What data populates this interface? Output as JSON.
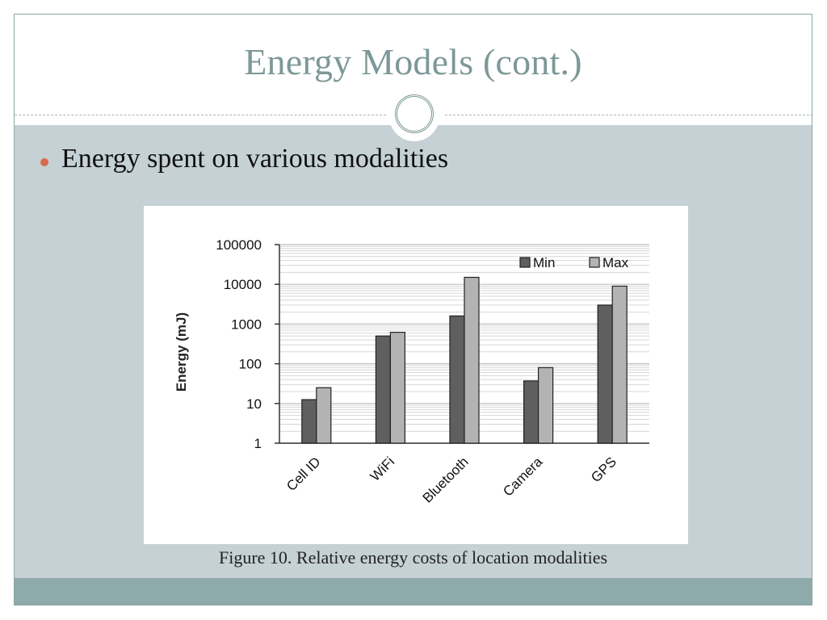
{
  "slide": {
    "title": "Energy Models (cont.)",
    "bullet": "Energy spent on various modalities",
    "caption": "Figure 10. Relative energy costs of location modalities",
    "colors": {
      "title": "#7d9897",
      "background": "#c5d1d5",
      "footer": "#8eaaab",
      "bullet": "#d9694c",
      "min_bar": "#5f5f5f",
      "max_bar": "#b3b3b3"
    }
  },
  "chart_data": {
    "type": "bar",
    "title": "",
    "xlabel": "",
    "ylabel": "Energy (mJ)",
    "yscale": "log",
    "ylim": [
      1,
      100000
    ],
    "yticks": [
      "1",
      "10",
      "100",
      "1000",
      "10000",
      "100000"
    ],
    "categories": [
      "Cell ID",
      "WiFi",
      "Bluetooth",
      "Camera",
      "GPS"
    ],
    "series": [
      {
        "name": "Min",
        "values": [
          12.5,
          500,
          1600,
          37,
          3000
        ]
      },
      {
        "name": "Max",
        "values": [
          25,
          620,
          15000,
          80,
          9000
        ]
      }
    ],
    "legend": {
      "position": "upper right",
      "entries": [
        "Min",
        "Max"
      ]
    },
    "grid": true,
    "x_tick_rotation": -45
  }
}
